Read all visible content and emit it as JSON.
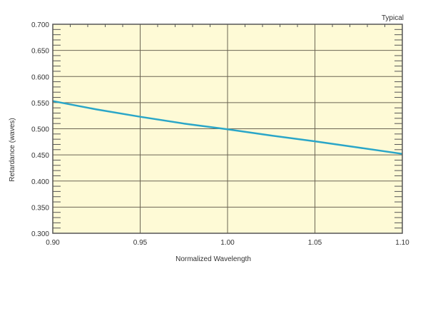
{
  "chart_data": {
    "type": "line",
    "annotation": "Typical",
    "xlabel": "Normalized Wavelength",
    "ylabel": "Retardance (waves)",
    "xlim": [
      0.9,
      1.1
    ],
    "ylim": [
      0.3,
      0.7
    ],
    "xticks": [
      "0.90",
      "0.95",
      "1.00",
      "1.05",
      "1.10"
    ],
    "yticks": [
      "0.300",
      "0.350",
      "0.400",
      "0.450",
      "0.500",
      "0.550",
      "0.600",
      "0.650",
      "0.700"
    ],
    "grid": true,
    "background_color": "#fefad6",
    "series": [
      {
        "color": "#2aa6c8",
        "x": [
          0.9,
          0.925,
          0.95,
          0.975,
          1.0,
          1.025,
          1.05,
          1.075,
          1.1
        ],
        "y": [
          0.553,
          0.537,
          0.523,
          0.51,
          0.499,
          0.487,
          0.476,
          0.464,
          0.452
        ]
      }
    ]
  }
}
